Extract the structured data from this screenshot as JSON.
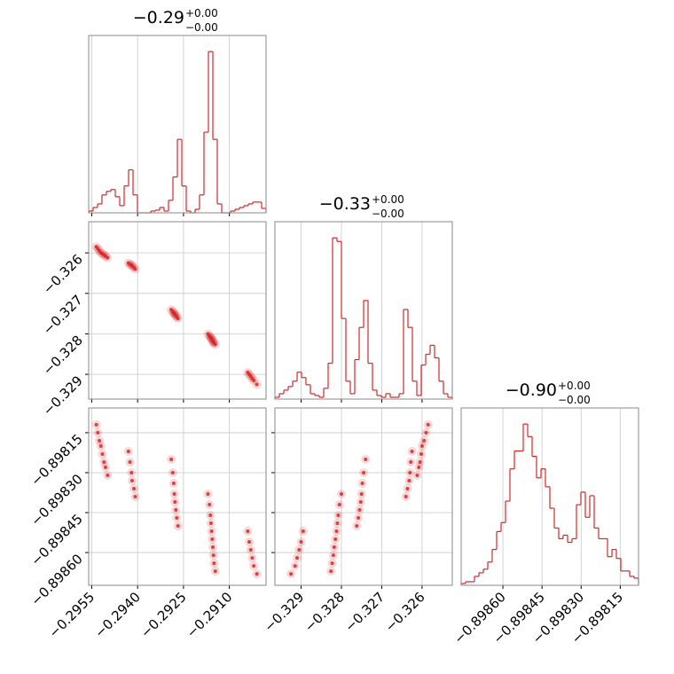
{
  "chart_data": [
    {
      "type": "histogram",
      "title": "−0.29",
      "title_upper": "+0.00",
      "title_lower": "−0.00",
      "color": "#d62728",
      "grid": true,
      "show_xtick_labels": false,
      "bins": [
        -0.2956,
        -0.295455,
        -0.29531,
        -0.295165,
        -0.29502,
        -0.294875,
        -0.29473,
        -0.294585,
        -0.29444,
        -0.294295,
        -0.29415,
        -0.294005,
        -0.29386,
        -0.293715,
        -0.29357,
        -0.293425,
        -0.29328,
        -0.293135,
        -0.29299,
        -0.292845,
        -0.2927,
        -0.292555,
        -0.29241,
        -0.292265,
        -0.29212,
        -0.291975,
        -0.29183,
        -0.291685,
        -0.29154,
        -0.291395,
        -0.29125,
        -0.291105,
        -0.29096,
        -0.290815,
        -0.29067,
        -0.290525,
        -0.29038,
        -0.290235,
        -0.29009,
        -0.289945,
        -0.2898
      ],
      "counts": [
        2,
        6,
        10,
        20,
        24,
        26,
        18,
        8,
        30,
        48,
        20,
        0,
        0,
        0,
        2,
        3,
        6,
        2,
        14,
        40,
        82,
        30,
        2,
        0,
        4,
        20,
        90,
        180,
        82,
        10,
        0,
        0,
        2,
        4,
        6,
        8,
        10,
        12,
        12,
        5
      ],
      "xlim": [
        -0.2956,
        -0.2898
      ],
      "ylim": [
        0,
        198
      ],
      "xticks": [
        {
          "value": -0.2955,
          "label": "−0.2955"
        },
        {
          "value": -0.294,
          "label": "−0.2940"
        },
        {
          "value": -0.2925,
          "label": "−0.2925"
        },
        {
          "value": -0.291,
          "label": "−0.2910"
        }
      ]
    },
    {
      "type": "scatter",
      "color": "#d62728",
      "grid": true,
      "show_xtick_labels": false,
      "show_ytick_labels": true,
      "x": [
        -0.29535,
        -0.2953,
        -0.29525,
        -0.2952,
        -0.29515,
        -0.2951,
        -0.29505,
        -0.29498,
        -0.2943,
        -0.29425,
        -0.2942,
        -0.29418,
        -0.29412,
        -0.29408,
        -0.2929,
        -0.29285,
        -0.29282,
        -0.2928,
        -0.29278,
        -0.29275,
        -0.29272,
        -0.29268,
        -0.2917,
        -0.29165,
        -0.29162,
        -0.2916,
        -0.29158,
        -0.29156,
        -0.29154,
        -0.29152,
        -0.2915,
        -0.29146,
        -0.2904,
        -0.29035,
        -0.2903,
        -0.29025,
        -0.2902,
        -0.2901
      ],
      "y": [
        -0.32585,
        -0.3259,
        -0.32595,
        -0.326,
        -0.32602,
        -0.32605,
        -0.32608,
        -0.32612,
        -0.32625,
        -0.32628,
        -0.3263,
        -0.32632,
        -0.32636,
        -0.3264,
        -0.3274,
        -0.32745,
        -0.32748,
        -0.3275,
        -0.32752,
        -0.32755,
        -0.32758,
        -0.32762,
        -0.328,
        -0.32805,
        -0.32808,
        -0.3281,
        -0.32812,
        -0.32815,
        -0.32818,
        -0.3282,
        -0.32823,
        -0.32826,
        -0.32895,
        -0.329,
        -0.32905,
        -0.3291,
        -0.32915,
        -0.32925
      ],
      "xlim": [
        -0.2956,
        -0.2898
      ],
      "ylim": [
        -0.32961,
        -0.32523
      ],
      "xticks": [
        {
          "value": -0.2955,
          "label": "−0.2955"
        },
        {
          "value": -0.294,
          "label": "−0.2940"
        },
        {
          "value": -0.2925,
          "label": "−0.2925"
        },
        {
          "value": -0.291,
          "label": "−0.2910"
        }
      ],
      "yticks": [
        {
          "value": -0.329,
          "label": "−0.329"
        },
        {
          "value": -0.328,
          "label": "−0.328"
        },
        {
          "value": -0.327,
          "label": "−0.327"
        },
        {
          "value": -0.326,
          "label": "−0.326"
        }
      ]
    },
    {
      "type": "histogram",
      "title": "−0.33",
      "title_upper": "+0.00",
      "title_lower": "−0.00",
      "color": "#d62728",
      "grid": true,
      "show_xtick_labels": false,
      "bins": [
        -0.32965,
        -0.32954,
        -0.32943,
        -0.32932,
        -0.32921,
        -0.3291,
        -0.32899,
        -0.32888,
        -0.32877,
        -0.32866,
        -0.32855,
        -0.32844,
        -0.32833,
        -0.32822,
        -0.32811,
        -0.328,
        -0.32789,
        -0.32778,
        -0.32767,
        -0.32756,
        -0.32745,
        -0.32734,
        -0.32723,
        -0.32712,
        -0.32701,
        -0.3269,
        -0.32679,
        -0.32668,
        -0.32657,
        -0.32646,
        -0.32635,
        -0.32624,
        -0.32613,
        -0.32602,
        -0.32591,
        -0.3258,
        -0.32569,
        -0.32558,
        -0.32547,
        -0.32536,
        -0.32525
      ],
      "counts": [
        2,
        6,
        10,
        14,
        20,
        30,
        24,
        16,
        6,
        4,
        2,
        12,
        40,
        180,
        176,
        90,
        20,
        6,
        44,
        80,
        110,
        40,
        10,
        4,
        2,
        6,
        2,
        2,
        6,
        100,
        80,
        20,
        4,
        38,
        50,
        60,
        46,
        20,
        6,
        2
      ],
      "xlim": [
        -0.32965,
        -0.32525
      ],
      "ylim": [
        0,
        198
      ],
      "xticks": [
        {
          "value": -0.329,
          "label": "−0.329"
        },
        {
          "value": -0.328,
          "label": "−0.328"
        },
        {
          "value": -0.327,
          "label": "−0.327"
        },
        {
          "value": -0.326,
          "label": "−0.326"
        }
      ]
    },
    {
      "type": "scatter",
      "color": "#d62728",
      "grid": true,
      "show_xtick_labels": true,
      "show_ytick_labels": true,
      "x": [
        -0.29535,
        -0.2953,
        -0.29525,
        -0.2952,
        -0.29515,
        -0.2951,
        -0.29505,
        -0.29498,
        -0.2943,
        -0.29425,
        -0.2942,
        -0.29418,
        -0.29412,
        -0.29408,
        -0.2929,
        -0.29285,
        -0.29282,
        -0.2928,
        -0.29278,
        -0.29275,
        -0.29272,
        -0.29268,
        -0.2917,
        -0.29165,
        -0.29162,
        -0.2916,
        -0.29158,
        -0.29156,
        -0.29154,
        -0.29152,
        -0.2915,
        -0.29146,
        -0.2904,
        -0.29035,
        -0.2903,
        -0.29025,
        -0.2902,
        -0.2901
      ],
      "y": [
        -0.89812,
        -0.89815,
        -0.89818,
        -0.8982,
        -0.89823,
        -0.89826,
        -0.89828,
        -0.89831,
        -0.89822,
        -0.89826,
        -0.8983,
        -0.89833,
        -0.89836,
        -0.89839,
        -0.89825,
        -0.8983,
        -0.89834,
        -0.89838,
        -0.89841,
        -0.89844,
        -0.89847,
        -0.8985,
        -0.89838,
        -0.89842,
        -0.89846,
        -0.89849,
        -0.89852,
        -0.89855,
        -0.89858,
        -0.89861,
        -0.89864,
        -0.89867,
        -0.89852,
        -0.89856,
        -0.89859,
        -0.89862,
        -0.89865,
        -0.89868
      ],
      "xlim": [
        -0.2956,
        -0.2898
      ],
      "ylim": [
        -0.898723,
        -0.898057
      ],
      "xticks": [
        {
          "value": -0.2955,
          "label": "−0.2955"
        },
        {
          "value": -0.294,
          "label": "−0.2940"
        },
        {
          "value": -0.2925,
          "label": "−0.2925"
        },
        {
          "value": -0.291,
          "label": "−0.2910"
        }
      ],
      "yticks": [
        {
          "value": -0.8986,
          "label": "−0.89860"
        },
        {
          "value": -0.89845,
          "label": "−0.89845"
        },
        {
          "value": -0.8983,
          "label": "−0.89830"
        },
        {
          "value": -0.89815,
          "label": "−0.89815"
        }
      ]
    },
    {
      "type": "scatter",
      "color": "#d62728",
      "grid": true,
      "show_xtick_labels": true,
      "show_ytick_labels": false,
      "x": [
        -0.32585,
        -0.3259,
        -0.32595,
        -0.326,
        -0.32602,
        -0.32605,
        -0.32608,
        -0.32612,
        -0.32625,
        -0.32628,
        -0.3263,
        -0.32632,
        -0.32636,
        -0.3264,
        -0.3274,
        -0.32745,
        -0.32748,
        -0.3275,
        -0.32752,
        -0.32755,
        -0.32758,
        -0.32762,
        -0.328,
        -0.32805,
        -0.32808,
        -0.3281,
        -0.32812,
        -0.32815,
        -0.32818,
        -0.3282,
        -0.32823,
        -0.32826,
        -0.32895,
        -0.329,
        -0.32905,
        -0.3291,
        -0.32915,
        -0.32925
      ],
      "y": [
        -0.89812,
        -0.89815,
        -0.89818,
        -0.8982,
        -0.89823,
        -0.89826,
        -0.89828,
        -0.89831,
        -0.89822,
        -0.89826,
        -0.8983,
        -0.89833,
        -0.89836,
        -0.89839,
        -0.89825,
        -0.8983,
        -0.89834,
        -0.89838,
        -0.89841,
        -0.89844,
        -0.89847,
        -0.8985,
        -0.89838,
        -0.89842,
        -0.89846,
        -0.89849,
        -0.89852,
        -0.89855,
        -0.89858,
        -0.89861,
        -0.89864,
        -0.89867,
        -0.89852,
        -0.89856,
        -0.89859,
        -0.89862,
        -0.89865,
        -0.89868
      ],
      "xlim": [
        -0.32965,
        -0.32525
      ],
      "ylim": [
        -0.898723,
        -0.898057
      ],
      "xticks": [
        {
          "value": -0.329,
          "label": "−0.329"
        },
        {
          "value": -0.328,
          "label": "−0.328"
        },
        {
          "value": -0.327,
          "label": "−0.327"
        },
        {
          "value": -0.326,
          "label": "−0.326"
        }
      ],
      "yticks": [
        {
          "value": -0.8986,
          "label": "−0.89860"
        },
        {
          "value": -0.89845,
          "label": "−0.89845"
        },
        {
          "value": -0.8983,
          "label": "−0.89830"
        },
        {
          "value": -0.89815,
          "label": "−0.89815"
        }
      ]
    },
    {
      "type": "histogram",
      "title": "−0.90",
      "title_upper": "+0.00",
      "title_lower": "−0.00",
      "color": "#d62728",
      "grid": true,
      "show_xtick_labels": true,
      "bins": [
        -0.89876,
        -0.898743,
        -0.898726,
        -0.898709,
        -0.898692,
        -0.898675,
        -0.898658,
        -0.898641,
        -0.898624,
        -0.898607,
        -0.89859,
        -0.898573,
        -0.898556,
        -0.898539,
        -0.898522,
        -0.898505,
        -0.898488,
        -0.898471,
        -0.898454,
        -0.898437,
        -0.89842,
        -0.898403,
        -0.898386,
        -0.898369,
        -0.898352,
        -0.898335,
        -0.898318,
        -0.898301,
        -0.898284,
        -0.898267,
        -0.89825,
        -0.898233,
        -0.898216,
        -0.898199,
        -0.898182,
        -0.898165,
        -0.898148,
        -0.898131,
        -0.898114,
        -0.898097,
        -0.89808
      ],
      "counts": [
        2,
        4,
        4,
        10,
        14,
        18,
        26,
        40,
        60,
        70,
        94,
        130,
        150,
        150,
        180,
        166,
        144,
        120,
        130,
        110,
        86,
        64,
        52,
        56,
        48,
        52,
        90,
        104,
        76,
        100,
        64,
        52,
        52,
        32,
        40,
        30,
        16,
        16,
        10,
        8
      ],
      "xlim": [
        -0.89876,
        -0.89808
      ],
      "ylim": [
        0,
        198
      ],
      "xticks": [
        {
          "value": -0.8986,
          "label": "−0.89860"
        },
        {
          "value": -0.89845,
          "label": "−0.89845"
        },
        {
          "value": -0.8983,
          "label": "−0.89830"
        },
        {
          "value": -0.89815,
          "label": "−0.89815"
        }
      ]
    }
  ]
}
